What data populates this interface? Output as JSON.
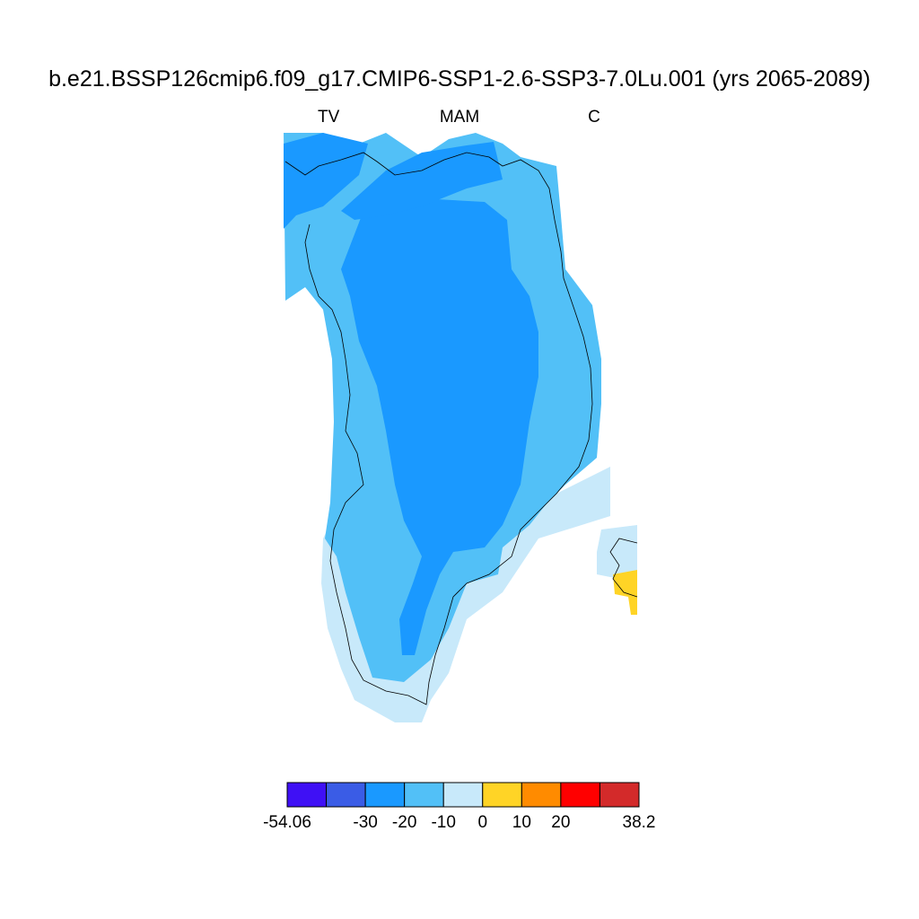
{
  "chart_data": {
    "type": "heatmap",
    "title": "b.e21.BSSP126cmip6.f09_g17.CMIP6-SSP1-2.6-SSP3-7.0Lu.001 (yrs 2065-2089)",
    "subtitle_left": "TV",
    "subtitle_center": "MAM",
    "subtitle_right": "C",
    "region": "Greenland",
    "colorbar": {
      "min": -54.06,
      "max": 38.2,
      "tick_labels": [
        "-54.06",
        "-30",
        "-20",
        "-10",
        "0",
        "10",
        "20",
        "38.2"
      ],
      "bins": [
        {
          "from": -54.06,
          "to": -40,
          "color": "#3f10f5"
        },
        {
          "from": -40,
          "to": -30,
          "color": "#3a5ce6"
        },
        {
          "from": -30,
          "to": -20,
          "color": "#1a99ff"
        },
        {
          "from": -20,
          "to": -10,
          "color": "#52c0f7"
        },
        {
          "from": -10,
          "to": 0,
          "color": "#c8e9fa"
        },
        {
          "from": 0,
          "to": 10,
          "color": "#ffd426"
        },
        {
          "from": 10,
          "to": 20,
          "color": "#ff8b00"
        },
        {
          "from": 20,
          "to": 30,
          "color": "#ff0000"
        },
        {
          "from": 30,
          "to": 38.2,
          "color": "#d32a2a"
        }
      ]
    },
    "field_regions": [
      {
        "name": "interior",
        "value_range": [
          -30,
          -20
        ],
        "color": "#1a99ff"
      },
      {
        "name": "margin",
        "value_range": [
          -20,
          -10
        ],
        "color": "#52c0f7"
      },
      {
        "name": "south-coast",
        "value_range": [
          -10,
          0
        ],
        "color": "#c8e9fa"
      },
      {
        "name": "iceland-patch",
        "value_range": [
          0,
          10
        ],
        "color": "#ffd426"
      }
    ]
  }
}
